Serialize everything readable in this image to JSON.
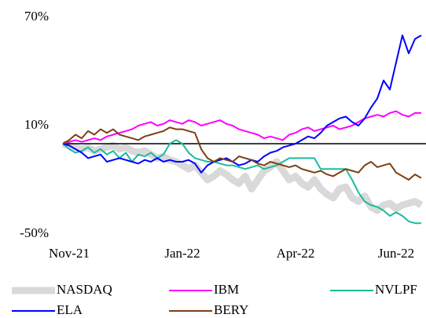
{
  "chart_data": {
    "type": "line",
    "categories": [
      null,
      "Nov-21",
      null,
      null,
      null,
      null,
      null,
      null,
      null,
      null,
      null,
      null,
      null,
      null,
      null,
      null,
      null,
      null,
      null,
      "Jan-22",
      null,
      null,
      null,
      null,
      null,
      null,
      null,
      null,
      null,
      null,
      null,
      null,
      null,
      null,
      null,
      null,
      null,
      "Apr-22",
      null,
      null,
      null,
      null,
      null,
      null,
      null,
      null,
      null,
      null,
      null,
      null,
      null,
      null,
      null,
      "Jun-22",
      null,
      null,
      null,
      null
    ],
    "ylim": [
      -50,
      70
    ],
    "yticks": [
      {
        "value": 70,
        "label": "70%"
      },
      {
        "value": 10,
        "label": "10%"
      },
      {
        "value": -50,
        "label": "-50%"
      }
    ],
    "series": [
      {
        "name": "NASDAQ",
        "color": "#d9d9d9",
        "values": [
          0,
          -1,
          -2,
          -3,
          -2,
          -4,
          -3,
          -2,
          -1,
          -3,
          -2,
          -4,
          -5,
          -4,
          -6,
          -8,
          -7,
          -9,
          -10,
          -12,
          -14,
          -12,
          -16,
          -20,
          -18,
          -15,
          -17,
          -20,
          -22,
          -18,
          -25,
          -20,
          -15,
          -13,
          -10,
          -15,
          -20,
          -18,
          -22,
          -24,
          -20,
          -25,
          -28,
          -30,
          -25,
          -24,
          -30,
          -32,
          -29,
          -35,
          -37,
          -34,
          -33,
          -36,
          -34,
          -33,
          -32,
          -34
        ]
      },
      {
        "name": "IBM",
        "color": "#ff00ff",
        "values": [
          0,
          1,
          2,
          1,
          2,
          3,
          2,
          4,
          5,
          6,
          7,
          8,
          10,
          11,
          12,
          10,
          11,
          13,
          12,
          11,
          13,
          12,
          10,
          11,
          12,
          13,
          11,
          10,
          8,
          7,
          6,
          5,
          3,
          4,
          3,
          2,
          5,
          6,
          8,
          9,
          7,
          8,
          9,
          10,
          8,
          9,
          10,
          12,
          14,
          15,
          16,
          15,
          17,
          18,
          16,
          15,
          17,
          17
        ]
      },
      {
        "name": "NVLPF",
        "color": "#1abc9c",
        "values": [
          0,
          -3,
          -5,
          -4,
          -2,
          -5,
          -3,
          -6,
          -4,
          -8,
          -5,
          -10,
          -6,
          -7,
          -5,
          -8,
          -6,
          0,
          2,
          0,
          -5,
          -8,
          -9,
          -10,
          -10,
          -11,
          -12,
          -12,
          -13,
          -14,
          -13,
          -12,
          -14,
          -13,
          -12,
          -10,
          -8,
          -8,
          -8,
          -8,
          -8,
          -14,
          -14,
          -14,
          -14,
          -14,
          -20,
          -27,
          -32,
          -34,
          -35,
          -37,
          -40,
          -38,
          -40,
          -43,
          -44,
          -44
        ]
      },
      {
        "name": "ELA",
        "color": "#0000ff",
        "values": [
          0,
          -1,
          -3,
          -5,
          -8,
          -7,
          -6,
          -10,
          -9,
          -8,
          -9,
          -10,
          -11,
          -9,
          -10,
          -8,
          -10,
          -9,
          -10,
          -10,
          -9,
          -11,
          -16,
          -12,
          -10,
          -9,
          -8,
          -10,
          -12,
          -11,
          -9,
          -10,
          -7,
          -5,
          -4,
          -2,
          -1,
          0,
          2,
          4,
          3,
          6,
          10,
          12,
          14,
          15,
          12,
          10,
          14,
          20,
          25,
          35,
          30,
          45,
          60,
          50,
          58,
          60
        ]
      },
      {
        "name": "BERY",
        "color": "#7b3f14",
        "values": [
          0,
          2,
          5,
          3,
          7,
          5,
          8,
          6,
          8,
          5,
          4,
          3,
          2,
          4,
          5,
          6,
          7,
          9,
          8,
          8,
          7,
          6,
          -3,
          -8,
          -10,
          -8,
          -9,
          -10,
          -7,
          -8,
          -9,
          -11,
          -12,
          -10,
          -11,
          -12,
          -13,
          -12,
          -14,
          -15,
          -16,
          -15,
          -17,
          -18,
          -16,
          -14,
          -15,
          -16,
          -12,
          -10,
          -13,
          -12,
          -11,
          -16,
          -18,
          -20,
          -17,
          -19
        ]
      }
    ]
  }
}
